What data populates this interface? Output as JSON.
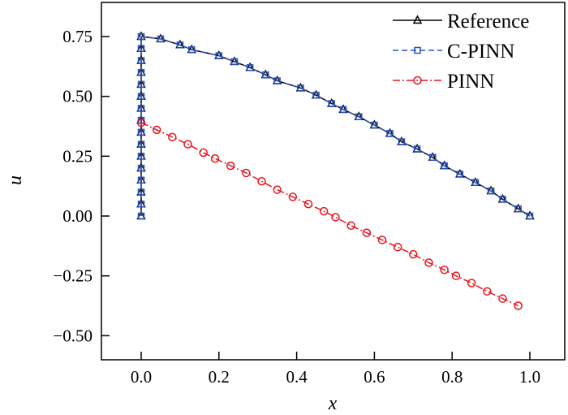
{
  "chart_data": {
    "type": "line",
    "title": "",
    "xlabel": "x",
    "ylabel": "u",
    "xlim": [
      -0.1,
      1.09
    ],
    "ylim": [
      -0.6,
      0.89
    ],
    "xticks": [
      0.0,
      0.2,
      0.4,
      0.6,
      0.8,
      1.0
    ],
    "xtick_labels": [
      "0.0",
      "0.2",
      "0.4",
      "0.6",
      "0.8",
      "1.0"
    ],
    "yticks": [
      -0.5,
      -0.25,
      0.0,
      0.25,
      0.5,
      0.75
    ],
    "ytick_labels": [
      "−0.50",
      "−0.25",
      "0.00",
      "0.25",
      "0.50",
      "0.75"
    ],
    "grid": false,
    "legend_position": "top-right",
    "series": [
      {
        "name": "Reference",
        "color": "#000000",
        "line_style": "solid",
        "marker": "triangle",
        "x": [
          0,
          0,
          0,
          0,
          0,
          0,
          0,
          0,
          0,
          0,
          0,
          0,
          0,
          0,
          0,
          0,
          0.05,
          0.1,
          0.13,
          0.2,
          0.24,
          0.28,
          0.32,
          0.35,
          0.41,
          0.45,
          0.49,
          0.52,
          0.56,
          0.6,
          0.64,
          0.67,
          0.71,
          0.75,
          0.78,
          0.82,
          0.86,
          0.9,
          0.93,
          0.97,
          1.0
        ],
        "y": [
          0,
          0.05,
          0.1,
          0.15,
          0.2,
          0.25,
          0.3,
          0.35,
          0.4,
          0.45,
          0.5,
          0.55,
          0.6,
          0.65,
          0.7,
          0.75,
          0.74,
          0.715,
          0.695,
          0.67,
          0.645,
          0.62,
          0.59,
          0.565,
          0.535,
          0.505,
          0.47,
          0.445,
          0.415,
          0.38,
          0.345,
          0.31,
          0.28,
          0.245,
          0.21,
          0.175,
          0.14,
          0.105,
          0.07,
          0.03,
          0.0
        ]
      },
      {
        "name": "C-PINN",
        "color": "#2a52be",
        "line_style": "dashed",
        "marker": "square",
        "x": [
          0,
          0,
          0,
          0,
          0,
          0,
          0,
          0,
          0,
          0,
          0,
          0,
          0,
          0,
          0,
          0,
          0.05,
          0.1,
          0.13,
          0.2,
          0.24,
          0.28,
          0.32,
          0.35,
          0.41,
          0.45,
          0.49,
          0.52,
          0.56,
          0.6,
          0.64,
          0.67,
          0.71,
          0.75,
          0.78,
          0.82,
          0.86,
          0.9,
          0.93,
          0.97,
          1.0
        ],
        "y": [
          0,
          0.05,
          0.1,
          0.15,
          0.2,
          0.25,
          0.3,
          0.35,
          0.4,
          0.45,
          0.5,
          0.55,
          0.6,
          0.65,
          0.7,
          0.75,
          0.74,
          0.715,
          0.695,
          0.67,
          0.645,
          0.62,
          0.59,
          0.565,
          0.535,
          0.505,
          0.47,
          0.445,
          0.415,
          0.38,
          0.345,
          0.31,
          0.28,
          0.245,
          0.21,
          0.175,
          0.14,
          0.105,
          0.07,
          0.03,
          0.0
        ]
      },
      {
        "name": "PINN",
        "color": "#e8141c",
        "line_style": "dashdot",
        "marker": "circle",
        "x": [
          0,
          0.04,
          0.08,
          0.12,
          0.16,
          0.19,
          0.23,
          0.27,
          0.31,
          0.35,
          0.39,
          0.43,
          0.47,
          0.5,
          0.54,
          0.58,
          0.62,
          0.66,
          0.7,
          0.74,
          0.78,
          0.81,
          0.85,
          0.89,
          0.93,
          0.97
        ],
        "y": [
          0.39,
          0.36,
          0.33,
          0.3,
          0.265,
          0.24,
          0.21,
          0.18,
          0.145,
          0.11,
          0.08,
          0.05,
          0.02,
          -0.005,
          -0.04,
          -0.07,
          -0.1,
          -0.13,
          -0.16,
          -0.195,
          -0.225,
          -0.25,
          -0.28,
          -0.315,
          -0.345,
          -0.375
        ]
      }
    ]
  }
}
